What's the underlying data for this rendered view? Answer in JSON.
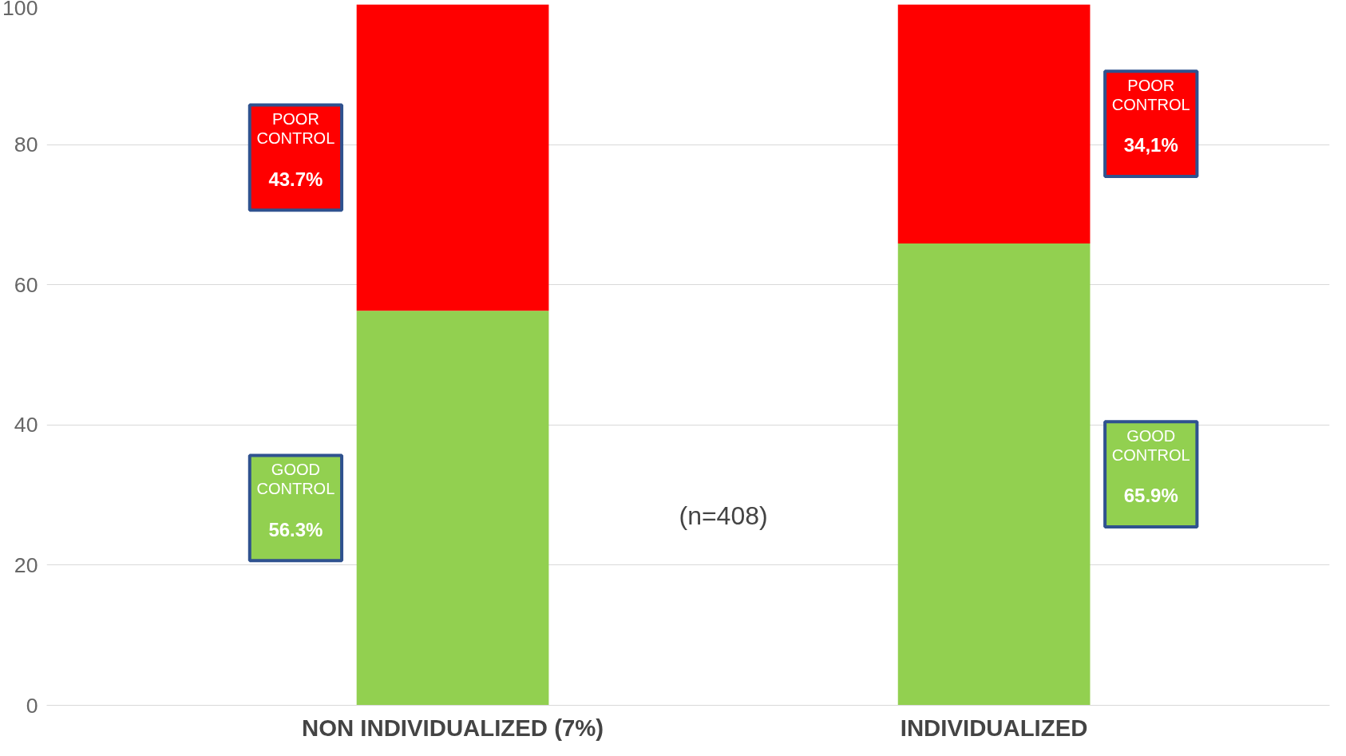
{
  "chart_data": {
    "type": "bar",
    "stacked": true,
    "categories": [
      "NON INDIVIDUALIZED (7%)",
      "INDIVIDUALIZED"
    ],
    "series": [
      {
        "name": "GOOD CONTROL",
        "color": "#92d050",
        "values": [
          56.3,
          65.9
        ]
      },
      {
        "name": "POOR CONTROL",
        "color": "#ff0000",
        "values": [
          43.7,
          34.1
        ]
      }
    ],
    "ylim": [
      0,
      100
    ],
    "yticks": [
      0,
      20,
      40,
      60,
      80,
      100
    ],
    "grid": "y",
    "annotations": [
      "(n=408)",
      "56.3%",
      "65.9%",
      "43.7%",
      "34,1%"
    ]
  }
}
